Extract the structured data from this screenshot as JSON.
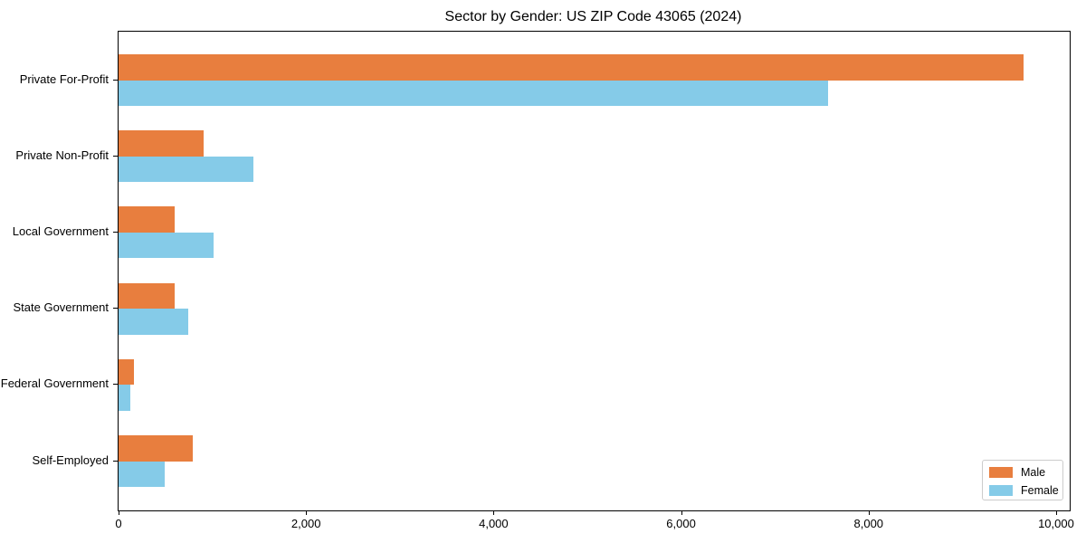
{
  "chart_data": {
    "type": "bar",
    "orientation": "horizontal",
    "title": "Sector by Gender: US ZIP Code 43065 (2024)",
    "categories": [
      "Private For-Profit",
      "Private Non-Profit",
      "Local Government",
      "State Government",
      "Federal Government",
      "Self-Employed"
    ],
    "series": [
      {
        "name": "Male",
        "color": "#e87e3e",
        "values": [
          9650,
          910,
          595,
          600,
          160,
          790
        ]
      },
      {
        "name": "Female",
        "color": "#85cbe8",
        "values": [
          7570,
          1440,
          1010,
          740,
          130,
          490
        ]
      }
    ],
    "xlabel": "",
    "ylabel": "",
    "xlim": [
      0,
      10145
    ],
    "xticks": [
      0,
      2000,
      4000,
      6000,
      8000,
      10000
    ],
    "xtick_labels": [
      "0",
      "2,000",
      "4,000",
      "6,000",
      "8,000",
      "10,000"
    ],
    "grid": false,
    "legend": {
      "position": "lower right"
    },
    "colors": {
      "male": "#e87e3e",
      "female": "#85cbe8",
      "spine": "#000000",
      "text": "#000000",
      "legend_border": "#cccccc",
      "background": "#ffffff"
    }
  }
}
